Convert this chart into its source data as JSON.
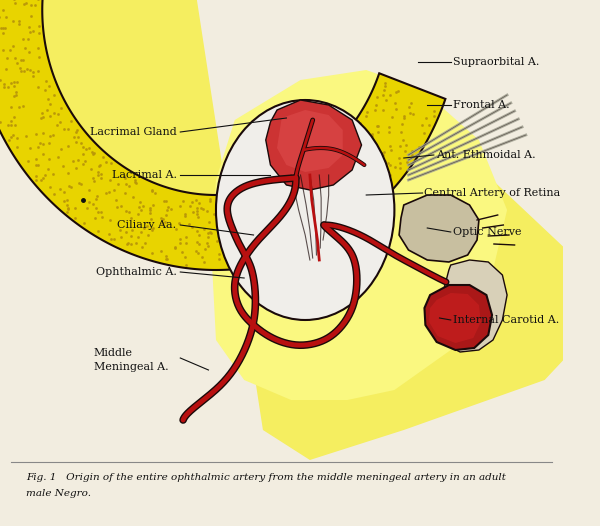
{
  "figure_width": 6.0,
  "figure_height": 5.26,
  "dpi": 100,
  "bg_color": "#f2ede0",
  "caption_line1": "Fig. 1   Origin of the entire ophthalmic artery from the middle meningeal artery in an adult",
  "caption_line2": "male Negro.",
  "labels": {
    "lacrimal_gland": "Lacrimal Gland",
    "lacrimal_a": "Lacrimal A.",
    "ciliary_aa": "Ciliary Aa.",
    "ophthalmic_a": "Ophthalmic A.",
    "middle_meningeal_a_1": "Middle",
    "middle_meningeal_a_2": "Meningeal A.",
    "supraorbital_a": "Supraorbital A.",
    "frontal_a": "Frontal A.",
    "ant_ethmoidal_a": "Ant. Ethmoidal A.",
    "central_artery_retina": "Central Artery of Retina",
    "optic_nerve": "Optic Nerve",
    "internal_carotid_a": "Internal Carotid A."
  },
  "yellow_band": "#e8d400",
  "yellow_light": "#f5ee60",
  "yellow_very_light": "#faf880",
  "dotted_color": "#b8960a",
  "red_artery": "#b81010",
  "dark_outline": "#1a0a0a",
  "black": "#111111",
  "white_ish": "#f0eeea",
  "gray_nerve": "#c8c0a0",
  "red_dark": "#8b1515",
  "orbit_fill": "#e8e4d0",
  "skin_tan": "#d4c090"
}
